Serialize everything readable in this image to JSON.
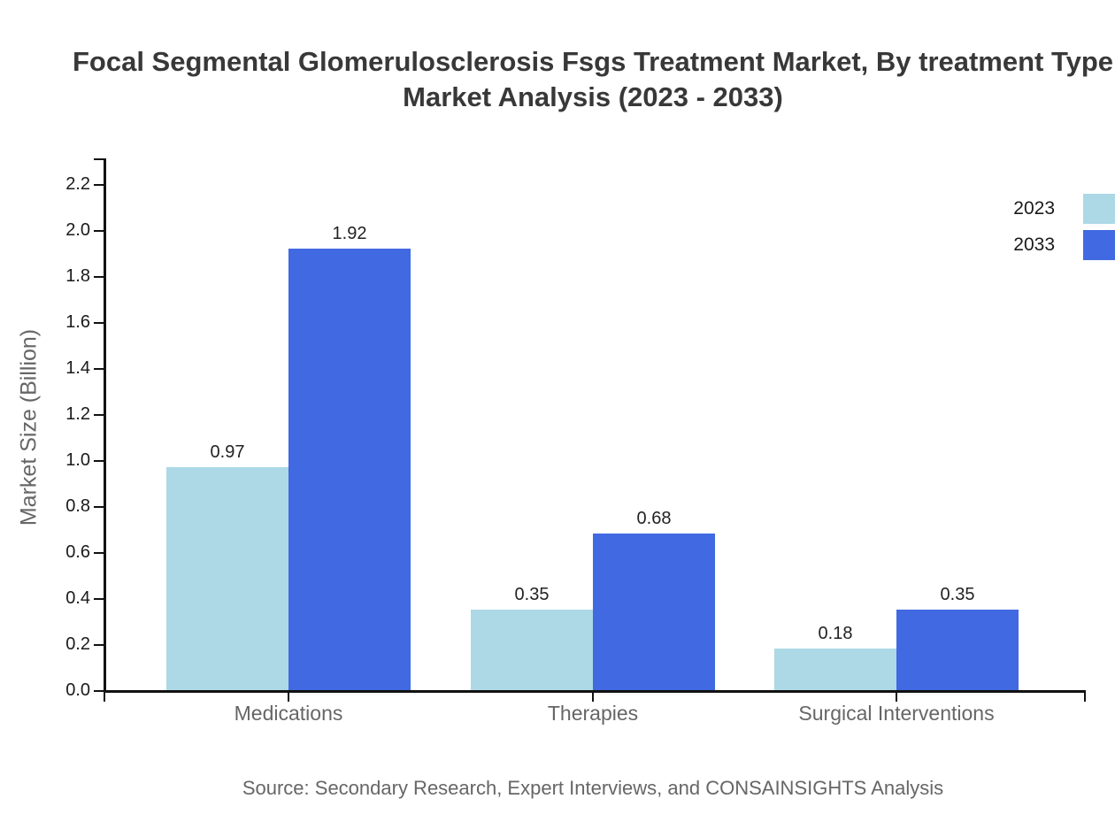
{
  "title": {
    "line1": "Focal Segmental Glomerulosclerosis Fsgs Treatment Market, By treatment Type",
    "line2": "Market Analysis (2023 - 2033)"
  },
  "source": "Source: Secondary Research, Expert Interviews, and CONSAINSIGHTS Analysis",
  "colors": {
    "series_2023": "#ADD8E6",
    "series_2033": "#4169E1",
    "axis": "#111111",
    "title_text": "#383838",
    "muted_text": "#666666"
  },
  "chart_data": {
    "type": "bar",
    "title": "Focal Segmental Glomerulosclerosis Fsgs Treatment Market, By treatment Type Market Analysis (2023 - 2033)",
    "categories": [
      "Medications",
      "Therapies",
      "Surgical Interventions"
    ],
    "series": [
      {
        "name": "2023",
        "color": "#ADD8E6",
        "values": [
          0.97,
          0.35,
          0.18
        ]
      },
      {
        "name": "2033",
        "color": "#4169E1",
        "values": [
          1.92,
          0.68,
          0.35
        ]
      }
    ],
    "xlabel": "",
    "ylabel": "Market Size (Billion)",
    "ylim": [
      0,
      2.31
    ],
    "y_tick_labels": [
      "0.0",
      "0.2",
      "0.4",
      "0.6",
      "0.8",
      "1.0",
      "1.2",
      "1.4",
      "1.6",
      "1.8",
      "2.0",
      "2.2"
    ],
    "bar_value_labels": [
      "0.97",
      "1.92",
      "0.35",
      "0.68",
      "0.18",
      "0.35"
    ],
    "grid": false,
    "legend_position": "upper right",
    "legend_entries": [
      {
        "label": "2023",
        "color": "#ADD8E6"
      },
      {
        "label": "2033",
        "color": "#4169E1"
      }
    ]
  }
}
